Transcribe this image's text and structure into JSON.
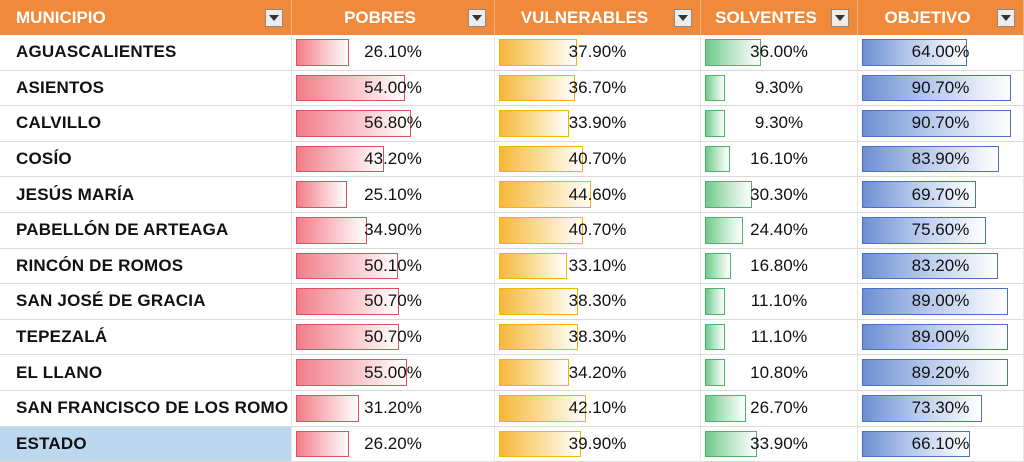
{
  "headers": [
    "MUNICIPIO",
    "POBRES",
    "VULNERABLES",
    "SOLVENTES",
    "OBJETIVO"
  ],
  "colors": {
    "header": "#f08a3a",
    "pobres": "#e0515f",
    "vulnerables": "#f5b400",
    "solventes": "#4bb46b",
    "objetivo": "#4a72c4",
    "estado_fill": "#bdd7ee"
  },
  "rows": [
    {
      "municipio": "AGUASCALIENTES",
      "pobres": "26.10%",
      "vulnerables": "37.90%",
      "solventes": "36.00%",
      "objetivo": "64.00%"
    },
    {
      "municipio": "ASIENTOS",
      "pobres": "54.00%",
      "vulnerables": "36.70%",
      "solventes": "9.30%",
      "objetivo": "90.70%"
    },
    {
      "municipio": "CALVILLO",
      "pobres": "56.80%",
      "vulnerables": "33.90%",
      "solventes": "9.30%",
      "objetivo": "90.70%"
    },
    {
      "municipio": "COSÍO",
      "pobres": "43.20%",
      "vulnerables": "40.70%",
      "solventes": "16.10%",
      "objetivo": "83.90%"
    },
    {
      "municipio": "JESÚS MARÍA",
      "pobres": "25.10%",
      "vulnerables": "44.60%",
      "solventes": "30.30%",
      "objetivo": "69.70%"
    },
    {
      "municipio": "PABELLÓN DE ARTEAGA",
      "pobres": "34.90%",
      "vulnerables": "40.70%",
      "solventes": "24.40%",
      "objetivo": "75.60%"
    },
    {
      "municipio": "RINCÓN DE ROMOS",
      "pobres": "50.10%",
      "vulnerables": "33.10%",
      "solventes": "16.80%",
      "objetivo": "83.20%"
    },
    {
      "municipio": "SAN JOSÉ DE GRACIA",
      "pobres": "50.70%",
      "vulnerables": "38.30%",
      "solventes": "11.10%",
      "objetivo": "89.00%"
    },
    {
      "municipio": "TEPEZALÁ",
      "pobres": "50.70%",
      "vulnerables": "38.30%",
      "solventes": "11.10%",
      "objetivo": "89.00%"
    },
    {
      "municipio": "EL LLANO",
      "pobres": "55.00%",
      "vulnerables": "34.20%",
      "solventes": "10.80%",
      "objetivo": "89.20%"
    },
    {
      "municipio": "SAN FRANCISCO DE LOS ROMO",
      "pobres": "31.20%",
      "vulnerables": "42.10%",
      "solventes": "26.70%",
      "objetivo": "73.30%"
    },
    {
      "municipio": "ESTADO",
      "pobres": "26.20%",
      "vulnerables": "39.90%",
      "solventes": "33.90%",
      "objetivo": "66.10%"
    }
  ]
}
